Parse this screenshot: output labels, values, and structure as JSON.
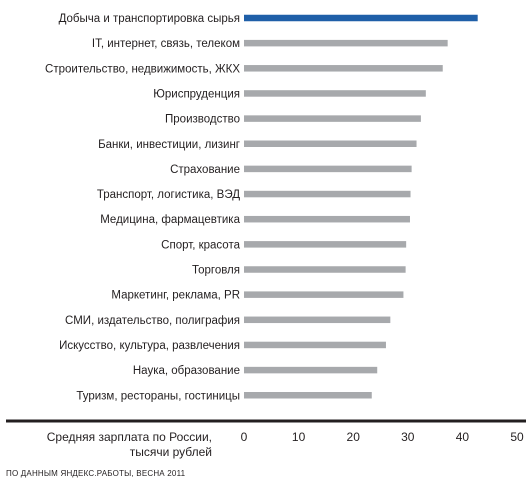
{
  "chart_data": {
    "type": "bar",
    "orientation": "horizontal",
    "categories": [
      "Добыча и транспортировка сырья",
      "IT, интернет, связь, телеком",
      "Строительство, недвижимость, ЖКХ",
      "Юриспруденция",
      "Производство",
      "Банки, инвестиции, лизинг",
      "Страхование",
      "Транспорт, логистика, ВЭД",
      "Медицина, фармацевтика",
      "Спорт, красота",
      "Торговля",
      "Маркетинг, реклама, PR",
      "СМИ, издательство, полиграфия",
      "Искусство, культура, развлечения",
      "Наука, образование",
      "Туризм, рестораны, гостиницы"
    ],
    "values": [
      42.8,
      37.3,
      36.4,
      33.3,
      32.4,
      31.6,
      30.7,
      30.5,
      30.4,
      29.7,
      29.6,
      29.2,
      26.8,
      26.0,
      24.4,
      23.4
    ],
    "highlight_index": 0,
    "xlim": [
      0,
      50
    ],
    "xticks": [
      "0",
      "10",
      "20",
      "30",
      "40",
      "50"
    ],
    "xlabel_lines": [
      "Средняя зарплата по России,",
      "тысячи рублей"
    ],
    "grid": false,
    "colors": {
      "highlight": "#1f5fa8",
      "bar": "#a7a9ac",
      "axis": "#231f20"
    }
  },
  "source": "ПО ДАННЫМ ЯНДЕКС.РАБОТЫ, ВЕСНА 2011"
}
